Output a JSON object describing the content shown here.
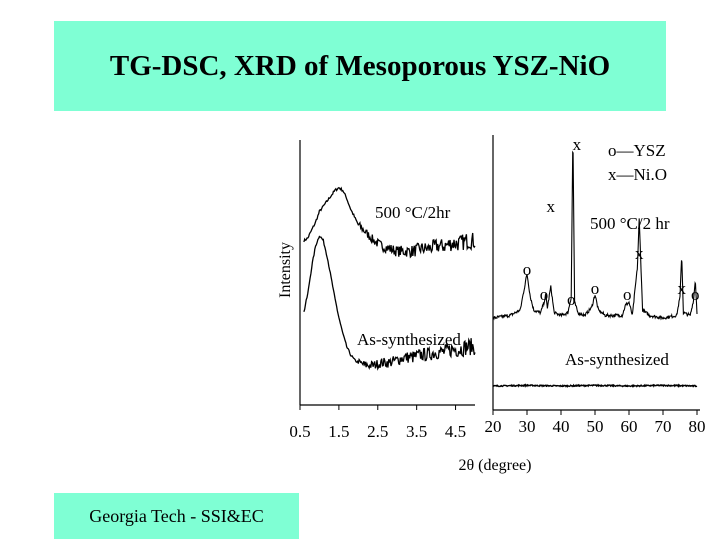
{
  "title": "TG-DSC, XRD of Mesoporous YSZ-NiO",
  "footer": "Georgia Tech -  SSI&EC",
  "chart_data": [
    {
      "type": "line",
      "title": "",
      "ylabel": "Intensity",
      "xlabel": "",
      "xticks": [
        "0.5",
        "1.5",
        "2.5",
        "3.5",
        "4.5"
      ],
      "xlim": [
        0.5,
        5.0
      ],
      "series": [
        {
          "name": "500 °C/2hr",
          "x": [
            0.6,
            0.7,
            0.8,
            0.9,
            1.0,
            1.1,
            1.2,
            1.3,
            1.4,
            1.5,
            1.6,
            1.7,
            1.8,
            1.9,
            2.0,
            2.2,
            2.4,
            2.6,
            2.8,
            3.0,
            3.2,
            3.4,
            3.6,
            3.8,
            4.0,
            4.2,
            4.4,
            4.6,
            4.8,
            5.0
          ],
          "y": [
            0.62,
            0.63,
            0.66,
            0.69,
            0.73,
            0.75,
            0.77,
            0.79,
            0.81,
            0.82,
            0.81,
            0.78,
            0.74,
            0.71,
            0.68,
            0.65,
            0.62,
            0.6,
            0.59,
            0.58,
            0.58,
            0.58,
            0.59,
            0.59,
            0.6,
            0.6,
            0.61,
            0.61,
            0.62,
            0.62
          ]
        },
        {
          "name": "As-synthesized",
          "x": [
            0.6,
            0.7,
            0.8,
            0.9,
            1.0,
            1.1,
            1.2,
            1.3,
            1.4,
            1.5,
            1.6,
            1.7,
            1.8,
            1.9,
            2.0,
            2.2,
            2.4,
            2.6,
            2.8,
            3.0,
            3.2,
            3.4,
            3.6,
            3.8,
            4.0,
            4.2,
            4.4,
            4.6,
            4.8,
            5.0
          ],
          "y": [
            0.35,
            0.42,
            0.52,
            0.6,
            0.64,
            0.62,
            0.56,
            0.48,
            0.4,
            0.33,
            0.27,
            0.22,
            0.19,
            0.17,
            0.16,
            0.15,
            0.15,
            0.16,
            0.16,
            0.17,
            0.18,
            0.18,
            0.19,
            0.19,
            0.2,
            0.2,
            0.21,
            0.21,
            0.22,
            0.22
          ]
        }
      ],
      "annotations": [
        "500 °C/2hr",
        "As-synthesized"
      ]
    },
    {
      "type": "line",
      "title": "",
      "xlabel": "2θ (degree)",
      "ylabel": "",
      "xticks": [
        "20",
        "30",
        "40",
        "50",
        "60",
        "70",
        "80"
      ],
      "xlim": [
        20,
        80
      ],
      "legend": [
        "o—YSZ",
        "x—Ni.O"
      ],
      "series": [
        {
          "name": "500 °C/2 hr",
          "x": [
            20,
            25,
            28,
            29,
            30,
            31,
            32,
            34,
            35,
            35.5,
            36,
            37,
            38,
            40,
            42,
            43,
            43.5,
            44,
            45,
            47,
            49,
            50,
            51,
            53,
            55,
            58,
            59,
            60,
            61,
            62.5,
            63,
            64,
            66,
            70,
            74,
            75,
            75.5,
            76,
            78,
            79,
            79.5,
            80
          ],
          "y": [
            0.2,
            0.21,
            0.23,
            0.3,
            0.37,
            0.28,
            0.23,
            0.22,
            0.26,
            0.29,
            0.24,
            0.32,
            0.22,
            0.21,
            0.22,
            0.28,
            0.93,
            0.26,
            0.22,
            0.21,
            0.24,
            0.29,
            0.23,
            0.21,
            0.21,
            0.21,
            0.25,
            0.26,
            0.21,
            0.4,
            0.58,
            0.23,
            0.21,
            0.2,
            0.21,
            0.28,
            0.45,
            0.22,
            0.21,
            0.27,
            0.35,
            0.22
          ]
        },
        {
          "name": "As-synthesized",
          "x": [
            20,
            30,
            40,
            50,
            60,
            70,
            80
          ],
          "y": [
            0.01,
            0.02,
            0.01,
            0.02,
            0.01,
            0.02,
            0.01
          ]
        }
      ],
      "peak_markers": [
        {
          "label": "x",
          "x": 43.5
        },
        {
          "label": "x",
          "x": 37
        },
        {
          "label": "x",
          "x": 63
        },
        {
          "label": "x",
          "x": 75.5
        },
        {
          "label": "o",
          "x": 30
        },
        {
          "label": "o",
          "x": 35
        },
        {
          "label": "o",
          "x": 43
        },
        {
          "label": "o",
          "x": 50
        },
        {
          "label": "o",
          "x": 59.5
        },
        {
          "label": "o",
          "x": 79.5
        }
      ],
      "annotations": [
        "500 °C/2 hr",
        "As-synthesized"
      ]
    }
  ]
}
